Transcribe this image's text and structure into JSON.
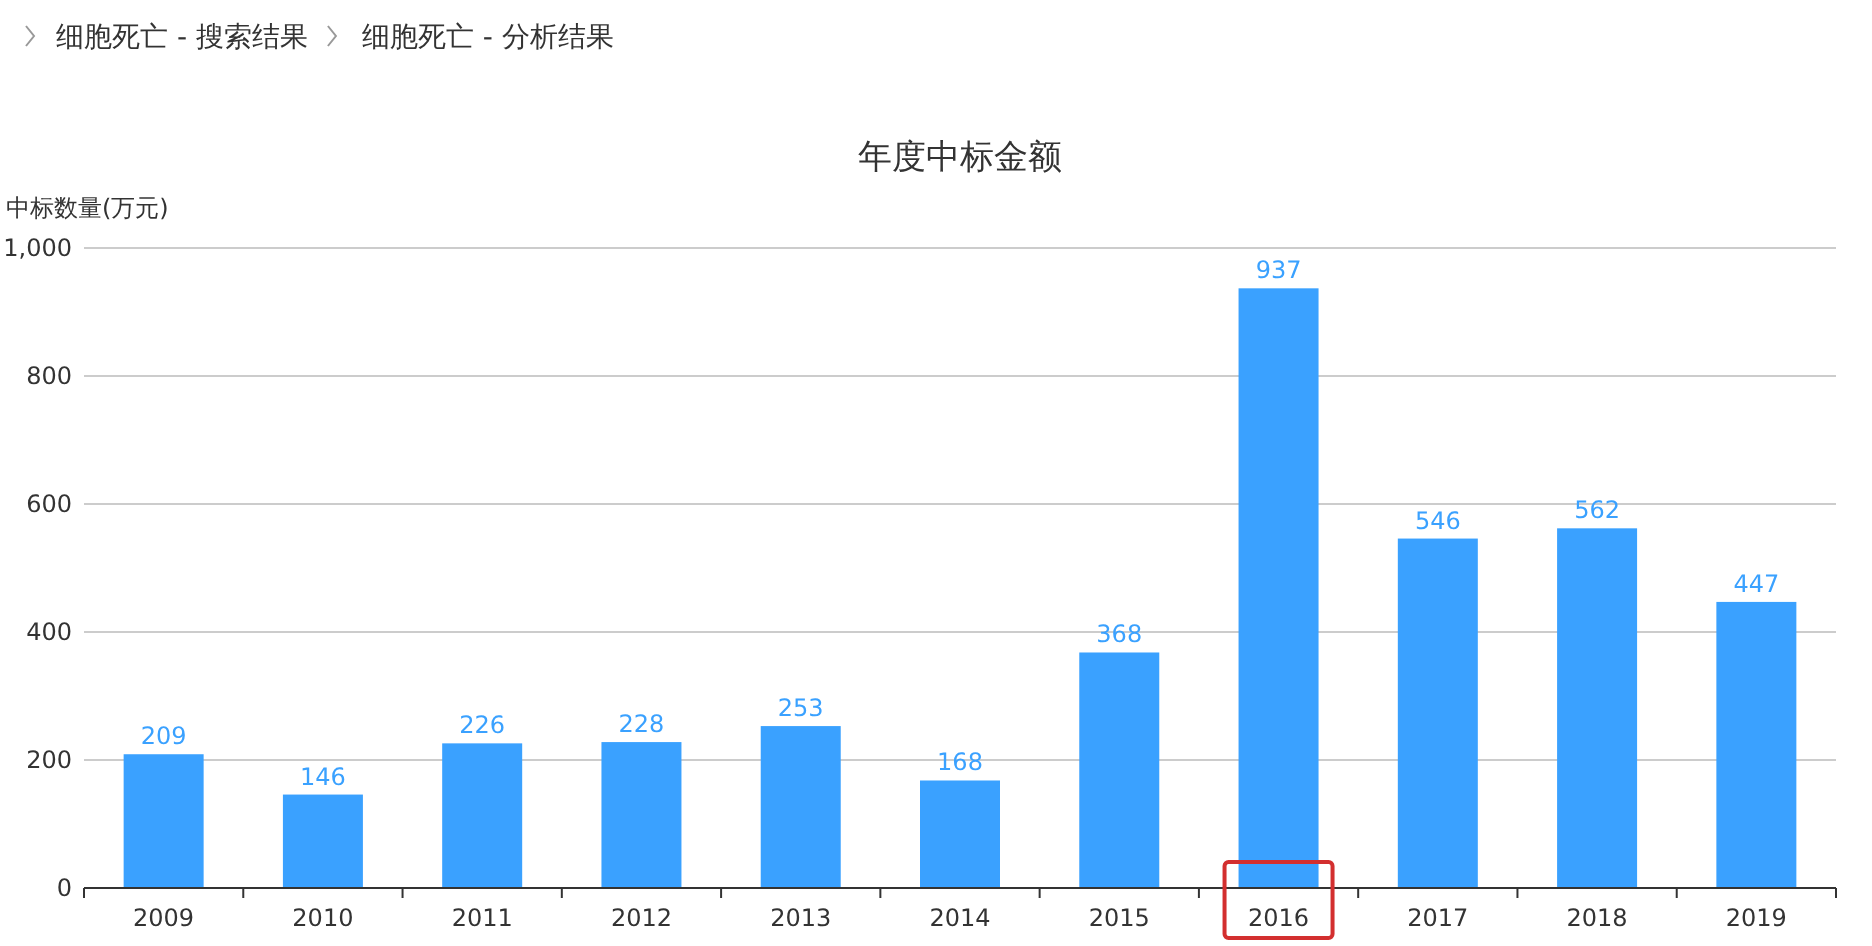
{
  "chart_data": {
    "type": "bar",
    "title": "年度中标金额",
    "ylabel": "中标数量(万元)",
    "annotations": [
      "细胞死亡 - 搜索结果",
      "细胞死亡 - 分析结果"
    ],
    "categories": [
      "2009",
      "2010",
      "2011",
      "2012",
      "2013",
      "2014",
      "2015",
      "2016",
      "2017",
      "2018",
      "2019"
    ],
    "values": [
      209,
      146,
      226,
      228,
      253,
      168,
      368,
      937,
      546,
      562,
      447
    ],
    "color": "#3aa1ff",
    "ylim": [
      0,
      1000
    ],
    "yticks": [
      0,
      200,
      400,
      600,
      800,
      {
        "value": 1000,
        "label": "1,000"
      }
    ],
    "grid": "y",
    "data_labels": true
  }
}
